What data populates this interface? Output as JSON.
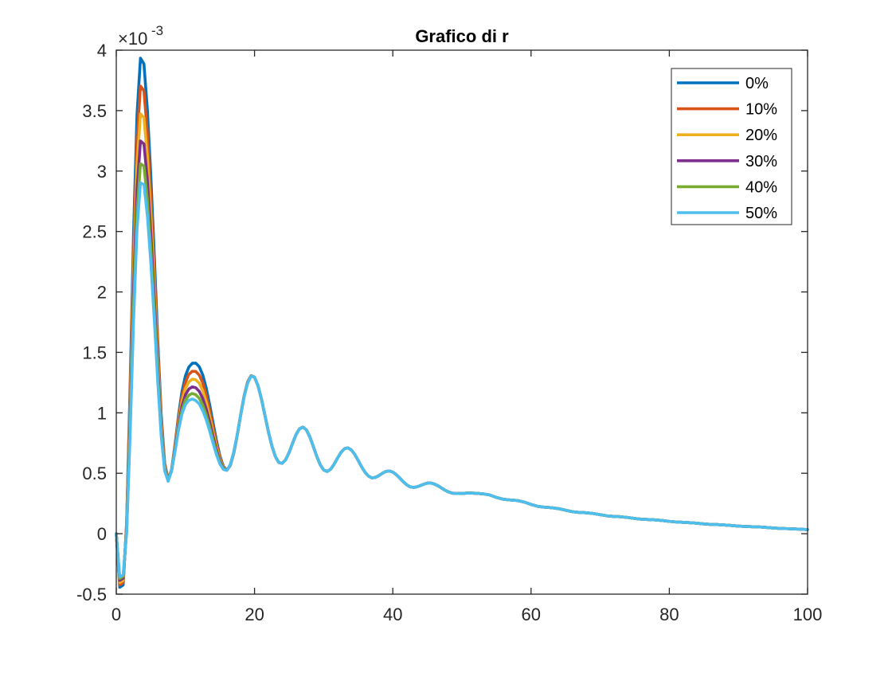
{
  "chart_data": {
    "type": "line",
    "title": "Grafico di r",
    "xlabel": "",
    "ylabel": "",
    "y_exponent": {
      "base": "×10",
      "power": "-3"
    },
    "xlim": [
      0,
      100
    ],
    "ylim": [
      -0.5,
      4
    ],
    "x_ticks": [
      0,
      20,
      40,
      60,
      80,
      100
    ],
    "x_tick_labels": [
      "0",
      "20",
      "40",
      "60",
      "80",
      "100"
    ],
    "y_ticks": [
      -0.5,
      0,
      0.5,
      1,
      1.5,
      2,
      2.5,
      3,
      3.5,
      4
    ],
    "y_tick_labels": [
      "-0.5",
      "0",
      "0.5",
      "1",
      "1.5",
      "2",
      "2.5",
      "3",
      "3.5",
      "4"
    ],
    "grid": false,
    "legend_position": "top-right",
    "x": [
      0,
      0.5,
      1,
      1.5,
      2,
      2.5,
      3,
      3.5,
      4,
      4.5,
      5,
      5.5,
      6,
      6.5,
      7,
      7.5,
      8,
      8.5,
      9,
      9.5,
      10,
      10.5,
      11,
      11.5,
      12,
      12.5,
      13,
      13.5,
      14,
      14.5,
      15,
      15.5,
      16,
      16.5,
      17,
      17.5,
      18,
      18.5,
      19,
      19.5,
      20,
      20.5,
      21,
      21.5,
      22,
      22.5,
      23,
      23.5,
      24,
      24.5,
      25,
      25.5,
      26,
      26.5,
      27,
      27.5,
      28,
      28.5,
      29,
      29.5,
      30,
      30.5,
      31,
      31.5,
      32,
      32.5,
      33,
      33.5,
      34,
      34.5,
      35,
      35.5,
      36,
      36.5,
      37,
      37.5,
      38,
      38.5,
      39,
      39.5,
      40,
      40.5,
      41,
      41.5,
      42,
      42.5,
      43,
      43.5,
      44,
      44.5,
      45,
      45.5,
      46,
      46.5,
      47,
      47.5,
      48,
      48.5,
      49,
      49.5,
      50,
      51,
      52,
      53,
      54,
      55,
      56,
      57,
      58,
      59,
      60,
      61,
      62,
      63,
      64,
      65,
      66,
      67,
      68,
      69,
      70,
      71,
      72,
      73,
      74,
      75,
      76,
      77,
      78,
      79,
      80,
      81,
      82,
      83,
      84,
      85,
      86,
      87,
      88,
      89,
      90,
      91,
      92,
      93,
      94,
      95,
      96,
      97,
      98,
      99,
      100
    ],
    "series": [
      {
        "name": "0%",
        "color": "#0072BD",
        "values": [
          0,
          -0.443,
          -0.424,
          0.097,
          1.221,
          2.484,
          3.47,
          3.934,
          3.887,
          3.507,
          2.956,
          2.301,
          1.603,
          0.986,
          0.585,
          0.447,
          0.529,
          0.739,
          0.977,
          1.175,
          1.306,
          1.379,
          1.41,
          1.411,
          1.382,
          1.315,
          1.208,
          1.07,
          0.917,
          0.768,
          0.642,
          0.556,
          0.527,
          0.565,
          0.666,
          0.815,
          0.985,
          1.142,
          1.256,
          1.308,
          1.295,
          1.225,
          1.114,
          0.98,
          0.846,
          0.728,
          0.64,
          0.59,
          0.582,
          0.612,
          0.672,
          0.748,
          0.82,
          0.868,
          0.882,
          0.859,
          0.801,
          0.722,
          0.64,
          0.571,
          0.528,
          0.515,
          0.533,
          0.574,
          0.625,
          0.672,
          0.703,
          0.71,
          0.693,
          0.656,
          0.605,
          0.552,
          0.507,
          0.476,
          0.462,
          0.466,
          0.481,
          0.5,
          0.515,
          0.519,
          0.51,
          0.489,
          0.461,
          0.431,
          0.405,
          0.388,
          0.383,
          0.388,
          0.398,
          0.41,
          0.418,
          0.419,
          0.412,
          0.398,
          0.38,
          0.362,
          0.347,
          0.337,
          0.332,
          0.332,
          0.334,
          0.336,
          0.335,
          0.33,
          0.321,
          0.3,
          0.285,
          0.279,
          0.275,
          0.262,
          0.242,
          0.226,
          0.219,
          0.215,
          0.207,
          0.194,
          0.182,
          0.176,
          0.173,
          0.167,
          0.157,
          0.148,
          0.143,
          0.14,
          0.134,
          0.126,
          0.12,
          0.117,
          0.114,
          0.109,
          0.102,
          0.097,
          0.094,
          0.091,
          0.087,
          0.081,
          0.077,
          0.075,
          0.072,
          0.068,
          0.063,
          0.06,
          0.058,
          0.056,
          0.052,
          0.047,
          0.044,
          0.042,
          0.04,
          0.037,
          0.034
        ]
      },
      {
        "name": "10%",
        "color": "#D95319",
        "values": [
          0,
          -0.423,
          -0.405,
          0.077,
          1.13,
          2.322,
          3.257,
          3.703,
          3.664,
          3.311,
          2.796,
          2.182,
          1.526,
          0.946,
          0.571,
          0.444,
          0.527,
          0.726,
          0.949,
          1.133,
          1.253,
          1.318,
          1.344,
          1.342,
          1.313,
          1.249,
          1.149,
          1.021,
          0.879,
          0.742,
          0.627,
          0.55,
          0.526,
          0.567,
          0.669,
          0.816,
          0.984,
          1.14,
          1.254,
          1.307,
          1.295,
          1.225,
          1.114,
          0.98,
          0.846,
          0.728,
          0.64,
          0.59,
          0.582,
          0.612,
          0.672,
          0.748,
          0.82,
          0.868,
          0.882,
          0.859,
          0.801,
          0.722,
          0.64,
          0.571,
          0.528,
          0.515,
          0.533,
          0.574,
          0.625,
          0.672,
          0.703,
          0.71,
          0.693,
          0.656,
          0.605,
          0.552,
          0.507,
          0.476,
          0.462,
          0.466,
          0.481,
          0.5,
          0.515,
          0.519,
          0.51,
          0.489,
          0.461,
          0.431,
          0.405,
          0.388,
          0.383,
          0.388,
          0.398,
          0.41,
          0.418,
          0.419,
          0.412,
          0.398,
          0.38,
          0.362,
          0.347,
          0.337,
          0.332,
          0.332,
          0.334,
          0.336,
          0.335,
          0.33,
          0.321,
          0.3,
          0.285,
          0.279,
          0.275,
          0.262,
          0.242,
          0.226,
          0.219,
          0.215,
          0.207,
          0.194,
          0.182,
          0.176,
          0.173,
          0.167,
          0.157,
          0.148,
          0.143,
          0.14,
          0.134,
          0.126,
          0.12,
          0.117,
          0.114,
          0.109,
          0.102,
          0.097,
          0.094,
          0.091,
          0.087,
          0.081,
          0.077,
          0.075,
          0.072,
          0.068,
          0.063,
          0.06,
          0.058,
          0.056,
          0.052,
          0.047,
          0.044,
          0.042,
          0.04,
          0.037,
          0.034
        ]
      },
      {
        "name": "20%",
        "color": "#EDB120",
        "values": [
          0,
          -0.404,
          -0.386,
          0.058,
          1.039,
          2.16,
          3.046,
          3.473,
          3.441,
          3.116,
          2.636,
          2.063,
          1.449,
          0.906,
          0.556,
          0.441,
          0.525,
          0.713,
          0.922,
          1.092,
          1.2,
          1.256,
          1.279,
          1.273,
          1.245,
          1.184,
          1.09,
          0.972,
          0.84,
          0.716,
          0.612,
          0.545,
          0.526,
          0.568,
          0.671,
          0.817,
          0.984,
          1.138,
          1.251,
          1.306,
          1.295,
          1.225,
          1.114,
          0.98,
          0.846,
          0.728,
          0.64,
          0.59,
          0.582,
          0.612,
          0.672,
          0.748,
          0.82,
          0.868,
          0.882,
          0.859,
          0.801,
          0.722,
          0.64,
          0.571,
          0.528,
          0.515,
          0.533,
          0.574,
          0.625,
          0.672,
          0.703,
          0.71,
          0.693,
          0.656,
          0.605,
          0.552,
          0.507,
          0.476,
          0.462,
          0.466,
          0.481,
          0.5,
          0.515,
          0.519,
          0.51,
          0.489,
          0.461,
          0.431,
          0.405,
          0.388,
          0.383,
          0.388,
          0.398,
          0.41,
          0.418,
          0.419,
          0.412,
          0.398,
          0.38,
          0.362,
          0.347,
          0.337,
          0.332,
          0.332,
          0.334,
          0.336,
          0.335,
          0.33,
          0.321,
          0.3,
          0.285,
          0.279,
          0.275,
          0.262,
          0.242,
          0.226,
          0.219,
          0.215,
          0.207,
          0.194,
          0.182,
          0.176,
          0.173,
          0.167,
          0.157,
          0.148,
          0.143,
          0.14,
          0.134,
          0.126,
          0.12,
          0.117,
          0.114,
          0.109,
          0.102,
          0.097,
          0.094,
          0.091,
          0.087,
          0.081,
          0.077,
          0.075,
          0.072,
          0.068,
          0.063,
          0.06,
          0.058,
          0.056,
          0.052,
          0.047,
          0.044,
          0.042,
          0.04,
          0.037,
          0.034
        ]
      },
      {
        "name": "30%",
        "color": "#7E2F8E",
        "values": [
          0,
          -0.386,
          -0.368,
          0.039,
          0.951,
          2.002,
          2.84,
          3.249,
          3.224,
          2.926,
          2.48,
          1.948,
          1.374,
          0.867,
          0.542,
          0.438,
          0.523,
          0.7,
          0.896,
          1.053,
          1.149,
          1.197,
          1.215,
          1.207,
          1.178,
          1.12,
          1.033,
          0.925,
          0.804,
          0.69,
          0.598,
          0.54,
          0.525,
          0.57,
          0.674,
          0.818,
          0.983,
          1.136,
          1.249,
          1.305,
          1.295,
          1.225,
          1.114,
          0.98,
          0.846,
          0.728,
          0.64,
          0.59,
          0.582,
          0.612,
          0.672,
          0.748,
          0.82,
          0.868,
          0.882,
          0.859,
          0.801,
          0.722,
          0.64,
          0.571,
          0.528,
          0.515,
          0.533,
          0.574,
          0.625,
          0.672,
          0.703,
          0.71,
          0.693,
          0.656,
          0.605,
          0.552,
          0.507,
          0.476,
          0.462,
          0.466,
          0.481,
          0.5,
          0.515,
          0.519,
          0.51,
          0.489,
          0.461,
          0.431,
          0.405,
          0.388,
          0.383,
          0.388,
          0.398,
          0.41,
          0.418,
          0.419,
          0.412,
          0.398,
          0.38,
          0.362,
          0.347,
          0.337,
          0.332,
          0.332,
          0.334,
          0.336,
          0.335,
          0.33,
          0.321,
          0.3,
          0.285,
          0.279,
          0.275,
          0.262,
          0.242,
          0.226,
          0.219,
          0.215,
          0.207,
          0.194,
          0.182,
          0.176,
          0.173,
          0.167,
          0.157,
          0.148,
          0.143,
          0.14,
          0.134,
          0.126,
          0.12,
          0.117,
          0.114,
          0.109,
          0.102,
          0.097,
          0.094,
          0.091,
          0.087,
          0.081,
          0.077,
          0.075,
          0.072,
          0.068,
          0.063,
          0.06,
          0.058,
          0.056,
          0.052,
          0.047,
          0.044,
          0.042,
          0.04,
          0.037,
          0.034
        ]
      },
      {
        "name": "40%",
        "color": "#77AC30",
        "values": [
          0,
          -0.371,
          -0.353,
          0.022,
          0.877,
          1.869,
          2.666,
          3.06,
          3.041,
          2.765,
          2.349,
          1.851,
          1.311,
          0.834,
          0.53,
          0.436,
          0.521,
          0.689,
          0.874,
          1.019,
          1.105,
          1.146,
          1.16,
          1.15,
          1.121,
          1.065,
          0.985,
          0.885,
          0.774,
          0.669,
          0.586,
          0.535,
          0.525,
          0.571,
          0.676,
          0.819,
          0.983,
          1.135,
          1.247,
          1.304,
          1.295,
          1.225,
          1.114,
          0.98,
          0.846,
          0.728,
          0.64,
          0.59,
          0.582,
          0.612,
          0.672,
          0.748,
          0.82,
          0.868,
          0.882,
          0.859,
          0.801,
          0.722,
          0.64,
          0.571,
          0.528,
          0.515,
          0.533,
          0.574,
          0.625,
          0.672,
          0.703,
          0.71,
          0.693,
          0.656,
          0.605,
          0.552,
          0.507,
          0.476,
          0.462,
          0.466,
          0.481,
          0.5,
          0.515,
          0.519,
          0.51,
          0.489,
          0.461,
          0.431,
          0.405,
          0.388,
          0.383,
          0.388,
          0.398,
          0.41,
          0.418,
          0.419,
          0.412,
          0.398,
          0.38,
          0.362,
          0.347,
          0.337,
          0.332,
          0.332,
          0.334,
          0.336,
          0.335,
          0.33,
          0.321,
          0.3,
          0.285,
          0.279,
          0.275,
          0.262,
          0.242,
          0.226,
          0.219,
          0.215,
          0.207,
          0.194,
          0.182,
          0.176,
          0.173,
          0.167,
          0.157,
          0.148,
          0.143,
          0.14,
          0.134,
          0.126,
          0.12,
          0.117,
          0.114,
          0.109,
          0.102,
          0.097,
          0.094,
          0.091,
          0.087,
          0.081,
          0.077,
          0.075,
          0.072,
          0.068,
          0.063,
          0.06,
          0.058,
          0.056,
          0.052,
          0.047,
          0.044,
          0.042,
          0.04,
          0.037,
          0.034
        ]
      },
      {
        "name": "50%",
        "color": "#4DBEEE",
        "values": [
          0,
          -0.358,
          -0.341,
          0.008,
          0.815,
          1.758,
          2.52,
          2.902,
          2.889,
          2.631,
          2.239,
          1.77,
          1.259,
          0.806,
          0.52,
          0.434,
          0.519,
          0.68,
          0.856,
          0.991,
          1.068,
          1.104,
          1.114,
          1.102,
          1.073,
          1.019,
          0.945,
          0.852,
          0.749,
          0.652,
          0.576,
          0.532,
          0.524,
          0.572,
          0.677,
          0.82,
          0.982,
          1.134,
          1.246,
          1.303,
          1.295,
          1.225,
          1.114,
          0.98,
          0.846,
          0.728,
          0.64,
          0.59,
          0.582,
          0.612,
          0.672,
          0.748,
          0.82,
          0.868,
          0.882,
          0.859,
          0.801,
          0.722,
          0.64,
          0.571,
          0.528,
          0.515,
          0.533,
          0.574,
          0.625,
          0.672,
          0.703,
          0.71,
          0.693,
          0.656,
          0.605,
          0.552,
          0.507,
          0.476,
          0.462,
          0.466,
          0.481,
          0.5,
          0.515,
          0.519,
          0.51,
          0.489,
          0.461,
          0.431,
          0.405,
          0.388,
          0.383,
          0.388,
          0.398,
          0.41,
          0.418,
          0.419,
          0.412,
          0.398,
          0.38,
          0.362,
          0.347,
          0.337,
          0.332,
          0.332,
          0.334,
          0.336,
          0.335,
          0.33,
          0.321,
          0.3,
          0.285,
          0.279,
          0.275,
          0.262,
          0.242,
          0.226,
          0.219,
          0.215,
          0.207,
          0.194,
          0.182,
          0.176,
          0.173,
          0.167,
          0.157,
          0.148,
          0.143,
          0.14,
          0.134,
          0.126,
          0.12,
          0.117,
          0.114,
          0.109,
          0.102,
          0.097,
          0.094,
          0.091,
          0.087,
          0.081,
          0.077,
          0.075,
          0.072,
          0.068,
          0.063,
          0.06,
          0.058,
          0.056,
          0.052,
          0.047,
          0.044,
          0.042,
          0.04,
          0.037,
          0.034
        ]
      }
    ]
  }
}
